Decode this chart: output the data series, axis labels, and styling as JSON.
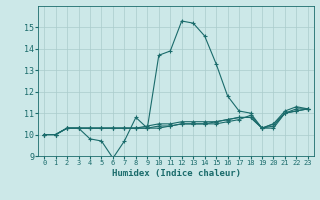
{
  "title": "",
  "xlabel": "Humidex (Indice chaleur)",
  "bg_color": "#cce8e8",
  "grid_color": "#aacccc",
  "line_color": "#1a6b6b",
  "xlim": [
    -0.5,
    23.5
  ],
  "ylim": [
    9,
    16
  ],
  "yticks": [
    9,
    10,
    11,
    12,
    13,
    14,
    15
  ],
  "xticks": [
    0,
    1,
    2,
    3,
    4,
    5,
    6,
    7,
    8,
    9,
    10,
    11,
    12,
    13,
    14,
    15,
    16,
    17,
    18,
    19,
    20,
    21,
    22,
    23
  ],
  "series": [
    [
      10.0,
      10.0,
      10.3,
      10.3,
      9.8,
      9.7,
      8.9,
      9.7,
      10.8,
      10.3,
      13.7,
      13.9,
      15.3,
      15.2,
      14.6,
      13.3,
      11.8,
      11.1,
      11.0,
      10.3,
      10.5,
      11.1,
      11.3,
      11.2
    ],
    [
      10.0,
      10.0,
      10.3,
      10.3,
      10.3,
      10.3,
      10.3,
      10.3,
      10.3,
      10.3,
      10.3,
      10.4,
      10.5,
      10.5,
      10.5,
      10.6,
      10.7,
      10.8,
      10.8,
      10.3,
      10.3,
      11.0,
      11.1,
      11.2
    ],
    [
      10.0,
      10.0,
      10.3,
      10.3,
      10.3,
      10.3,
      10.3,
      10.3,
      10.3,
      10.4,
      10.5,
      10.5,
      10.6,
      10.6,
      10.6,
      10.6,
      10.7,
      10.8,
      10.8,
      10.3,
      10.5,
      11.0,
      11.2,
      11.2
    ],
    [
      10.0,
      10.0,
      10.3,
      10.3,
      10.3,
      10.3,
      10.3,
      10.3,
      10.3,
      10.3,
      10.4,
      10.4,
      10.5,
      10.5,
      10.5,
      10.5,
      10.6,
      10.7,
      10.9,
      10.3,
      10.4,
      11.0,
      11.1,
      11.2
    ]
  ]
}
